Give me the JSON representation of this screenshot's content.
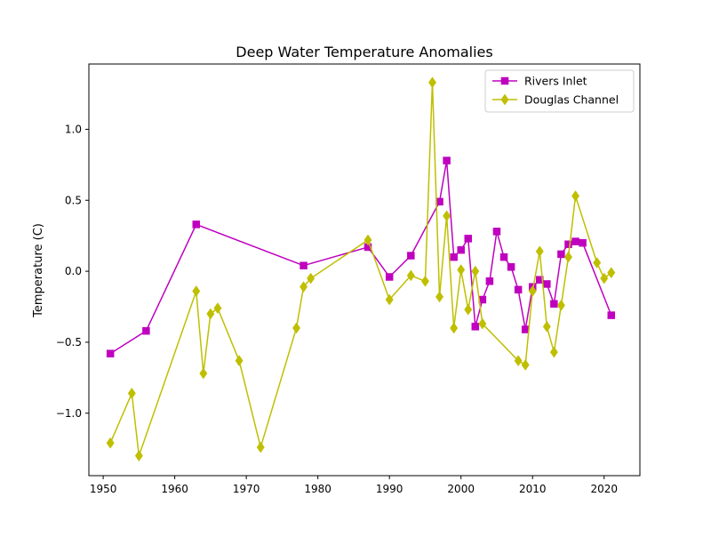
{
  "chart_data": {
    "type": "line",
    "title": "Deep Water Temperature Anomalies",
    "xlabel": "",
    "ylabel": "Temperature (C)",
    "xlim": [
      1948,
      2025
    ],
    "ylim": [
      -1.44,
      1.46
    ],
    "xticks": [
      1950,
      1960,
      1970,
      1980,
      1990,
      2000,
      2010,
      2020
    ],
    "yticks": [
      -1.0,
      -0.5,
      0.0,
      0.5,
      1.0
    ],
    "ytick_labels": [
      "−1.0",
      "−0.5",
      "0.0",
      "0.5",
      "1.0"
    ],
    "grid": false,
    "legend_position": "top-right",
    "series": [
      {
        "name": "Rivers Inlet",
        "color": "#bf00bf",
        "marker": "square",
        "x": [
          1951,
          1956,
          1963,
          1978,
          1987,
          1990,
          1993,
          1997,
          1998,
          1999,
          2000,
          2001,
          2002,
          2003,
          2004,
          2005,
          2006,
          2007,
          2008,
          2009,
          2010,
          2011,
          2012,
          2013,
          2014,
          2015,
          2016,
          2017,
          2021
        ],
        "y": [
          -0.58,
          -0.42,
          0.33,
          0.04,
          0.17,
          -0.04,
          0.11,
          0.49,
          0.78,
          0.1,
          0.15,
          0.23,
          -0.39,
          -0.2,
          -0.07,
          0.28,
          0.1,
          0.03,
          -0.13,
          -0.41,
          -0.11,
          -0.06,
          -0.09,
          -0.23,
          0.12,
          0.19,
          0.21,
          0.2,
          -0.31
        ]
      },
      {
        "name": "Douglas Channel",
        "color": "#bfbf00",
        "marker": "thin_diamond",
        "x": [
          1951,
          1954,
          1955,
          1963,
          1964,
          1965,
          1966,
          1969,
          1972,
          1977,
          1978,
          1979,
          1987,
          1990,
          1993,
          1995,
          1996,
          1997,
          1998,
          1999,
          2000,
          2001,
          2002,
          2003,
          2008,
          2009,
          2010,
          2011,
          2012,
          2013,
          2014,
          2015,
          2016,
          2019,
          2020,
          2021
        ],
        "y": [
          -1.21,
          -0.86,
          -1.3,
          -0.14,
          -0.72,
          -0.3,
          -0.26,
          -0.63,
          -1.24,
          -0.4,
          -0.11,
          -0.05,
          0.22,
          -0.2,
          -0.03,
          -0.07,
          1.33,
          -0.18,
          0.39,
          -0.4,
          0.01,
          -0.27,
          0.0,
          -0.37,
          -0.63,
          -0.66,
          -0.14,
          0.14,
          -0.39,
          -0.57,
          -0.24,
          0.1,
          0.53,
          0.06,
          -0.05,
          -0.01
        ]
      }
    ]
  }
}
